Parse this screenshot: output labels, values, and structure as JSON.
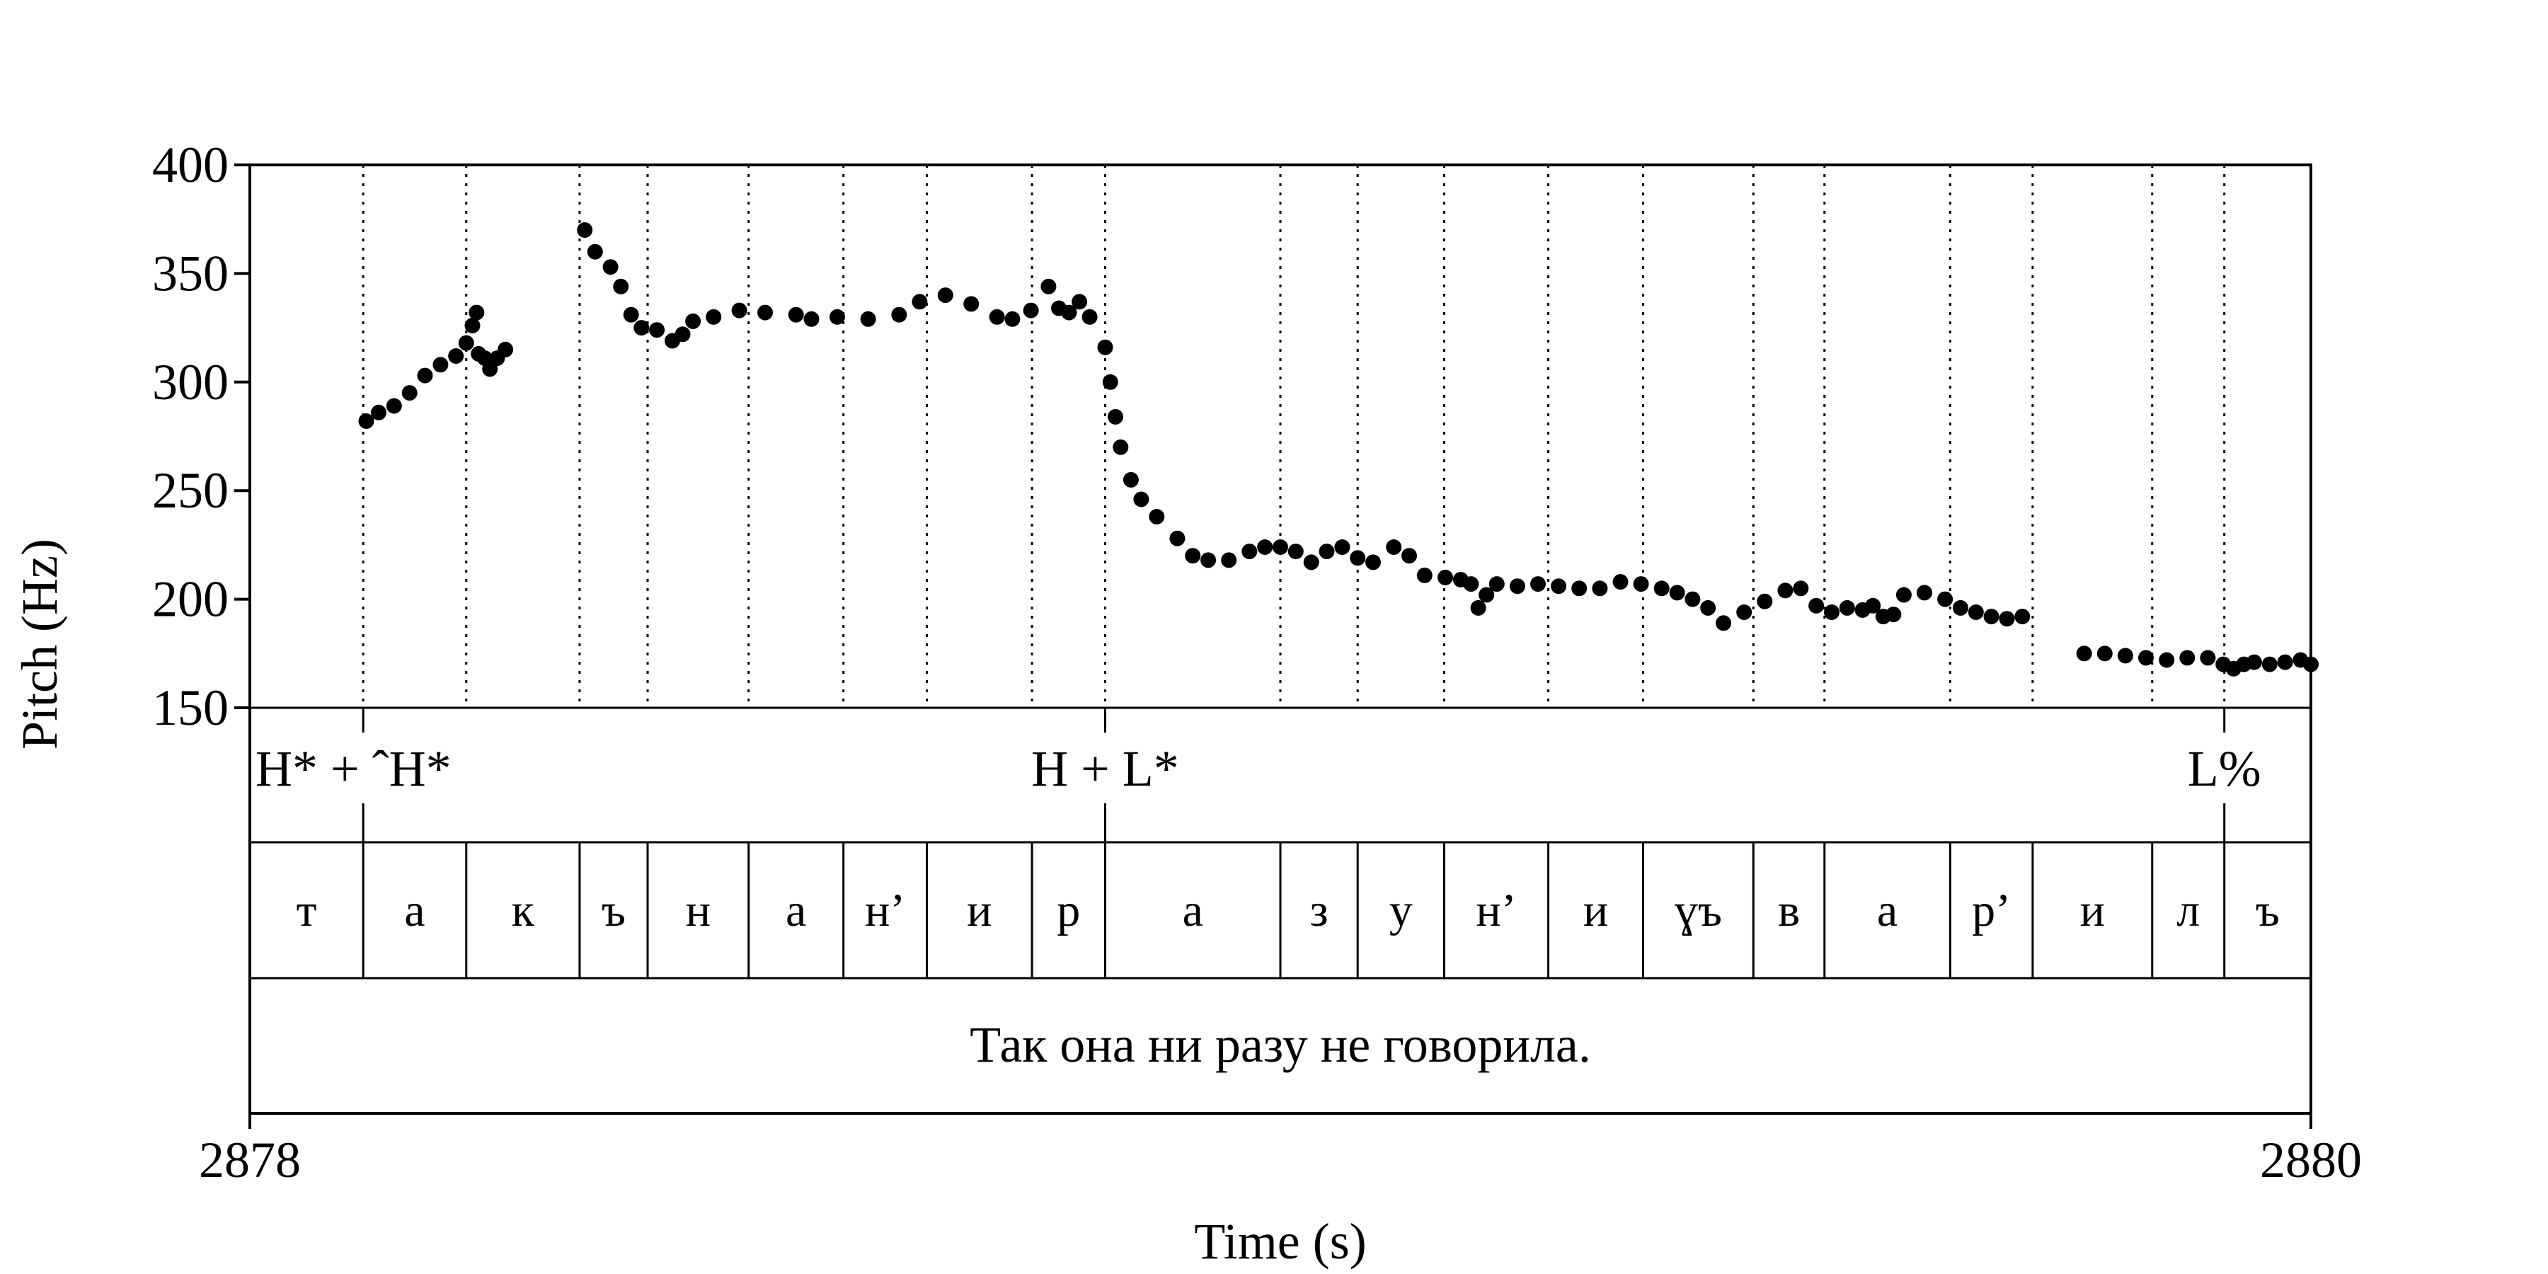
{
  "chart_data": {
    "type": "scatter",
    "xlabel": "Time (s)",
    "ylabel": "Pitch (Hz)",
    "xlim": [
      2878,
      2880
    ],
    "ylim": [
      150,
      400
    ],
    "x_ticks": [
      "2878",
      "2880"
    ],
    "y_ticks": [
      "150",
      "200",
      "250",
      "300",
      "350",
      "400"
    ],
    "grid": "dotted vertical lines at segment boundaries",
    "segment_boundaries": [
      2878.11,
      2878.21,
      2878.32,
      2878.386,
      2878.484,
      2878.576,
      2878.657,
      2878.759,
      2878.83,
      2879.0,
      2879.075,
      2879.159,
      2879.26,
      2879.352,
      2879.459,
      2879.528,
      2879.65,
      2879.73,
      2879.846,
      2879.916
    ],
    "tones": [
      {
        "label": "H* + ˆH*",
        "t": 2878.11
      },
      {
        "label": "H + L*",
        "t": 2878.83
      },
      {
        "label": "L%",
        "t": 2879.916
      }
    ],
    "segments": [
      {
        "label": "т",
        "start": 2878.0,
        "end": 2878.11
      },
      {
        "label": "а",
        "start": 2878.11,
        "end": 2878.21
      },
      {
        "label": "к",
        "start": 2878.21,
        "end": 2878.32
      },
      {
        "label": "ъ",
        "start": 2878.32,
        "end": 2878.386
      },
      {
        "label": "н",
        "start": 2878.386,
        "end": 2878.484
      },
      {
        "label": "а",
        "start": 2878.484,
        "end": 2878.576
      },
      {
        "label": "н’",
        "start": 2878.576,
        "end": 2878.657
      },
      {
        "label": "и",
        "start": 2878.657,
        "end": 2878.759
      },
      {
        "label": "р",
        "start": 2878.759,
        "end": 2878.83
      },
      {
        "label": "а",
        "start": 2878.83,
        "end": 2879.0
      },
      {
        "label": "з",
        "start": 2879.0,
        "end": 2879.075
      },
      {
        "label": "у",
        "start": 2879.075,
        "end": 2879.159
      },
      {
        "label": "н’",
        "start": 2879.159,
        "end": 2879.26
      },
      {
        "label": "и",
        "start": 2879.26,
        "end": 2879.352
      },
      {
        "label": "ɣъ",
        "start": 2879.352,
        "end": 2879.459
      },
      {
        "label": "в",
        "start": 2879.459,
        "end": 2879.528
      },
      {
        "label": "а",
        "start": 2879.528,
        "end": 2879.65
      },
      {
        "label": "р’",
        "start": 2879.65,
        "end": 2879.73
      },
      {
        "label": "и",
        "start": 2879.73,
        "end": 2879.846
      },
      {
        "label": "л",
        "start": 2879.846,
        "end": 2879.916
      },
      {
        "label": "ъ",
        "start": 2879.916,
        "end": 2880.0
      }
    ],
    "sentence": "Так она ни разу не говорила.",
    "series": [
      {
        "points": [
          [
            2878.113,
            282
          ],
          [
            2878.125,
            286
          ],
          [
            2878.14,
            289
          ],
          [
            2878.155,
            295
          ],
          [
            2878.17,
            303
          ],
          [
            2878.185,
            308
          ],
          [
            2878.2,
            312
          ],
          [
            2878.21,
            318
          ],
          [
            2878.216,
            326
          ],
          [
            2878.22,
            332
          ],
          [
            2878.222,
            313
          ],
          [
            2878.228,
            311
          ],
          [
            2878.233,
            306
          ],
          [
            2878.24,
            311
          ],
          [
            2878.248,
            315
          ],
          [
            2878.325,
            370
          ],
          [
            2878.335,
            360
          ],
          [
            2878.35,
            353
          ],
          [
            2878.36,
            344
          ],
          [
            2878.37,
            331
          ],
          [
            2878.38,
            325
          ],
          [
            2878.395,
            324
          ],
          [
            2878.41,
            319
          ],
          [
            2878.42,
            322
          ],
          [
            2878.43,
            328
          ],
          [
            2878.45,
            330
          ],
          [
            2878.475,
            333
          ],
          [
            2878.5,
            332
          ],
          [
            2878.53,
            331
          ],
          [
            2878.545,
            329
          ],
          [
            2878.57,
            330
          ],
          [
            2878.6,
            329
          ],
          [
            2878.63,
            331
          ],
          [
            2878.65,
            337
          ],
          [
            2878.675,
            340
          ],
          [
            2878.7,
            336
          ],
          [
            2878.725,
            330
          ],
          [
            2878.74,
            329
          ],
          [
            2878.758,
            333
          ],
          [
            2878.775,
            344
          ],
          [
            2878.785,
            334
          ],
          [
            2878.795,
            332
          ],
          [
            2878.805,
            337
          ],
          [
            2878.815,
            330
          ],
          [
            2878.83,
            316
          ],
          [
            2878.835,
            300
          ],
          [
            2878.84,
            284
          ],
          [
            2878.845,
            270
          ],
          [
            2878.855,
            255
          ],
          [
            2878.865,
            246
          ],
          [
            2878.88,
            238
          ],
          [
            2878.9,
            228
          ],
          [
            2878.915,
            220
          ],
          [
            2878.93,
            218
          ],
          [
            2878.95,
            218
          ],
          [
            2878.97,
            222
          ],
          [
            2878.985,
            224
          ],
          [
            2879.0,
            224
          ],
          [
            2879.015,
            222
          ],
          [
            2879.03,
            217
          ],
          [
            2879.045,
            222
          ],
          [
            2879.06,
            224
          ],
          [
            2879.075,
            219
          ],
          [
            2879.09,
            217
          ],
          [
            2879.11,
            224
          ],
          [
            2879.125,
            220
          ],
          [
            2879.14,
            211
          ],
          [
            2879.16,
            210
          ],
          [
            2879.175,
            209
          ],
          [
            2879.185,
            207
          ],
          [
            2879.192,
            196
          ],
          [
            2879.2,
            202
          ],
          [
            2879.21,
            207
          ],
          [
            2879.23,
            206
          ],
          [
            2879.25,
            207
          ],
          [
            2879.27,
            206
          ],
          [
            2879.29,
            205
          ],
          [
            2879.31,
            205
          ],
          [
            2879.33,
            208
          ],
          [
            2879.35,
            207
          ],
          [
            2879.37,
            205
          ],
          [
            2879.385,
            203
          ],
          [
            2879.4,
            200
          ],
          [
            2879.415,
            196
          ],
          [
            2879.43,
            189
          ],
          [
            2879.45,
            194
          ],
          [
            2879.47,
            199
          ],
          [
            2879.49,
            204
          ],
          [
            2879.505,
            205
          ],
          [
            2879.52,
            197
          ],
          [
            2879.535,
            194
          ],
          [
            2879.55,
            196
          ],
          [
            2879.565,
            195
          ],
          [
            2879.575,
            197
          ],
          [
            2879.585,
            192
          ],
          [
            2879.595,
            193
          ],
          [
            2879.605,
            202
          ],
          [
            2879.625,
            203
          ],
          [
            2879.645,
            200
          ],
          [
            2879.66,
            196
          ],
          [
            2879.675,
            194
          ],
          [
            2879.69,
            192
          ],
          [
            2879.705,
            191
          ],
          [
            2879.72,
            192
          ],
          [
            2879.78,
            175
          ],
          [
            2879.8,
            175
          ],
          [
            2879.82,
            174
          ],
          [
            2879.84,
            173
          ],
          [
            2879.86,
            172
          ],
          [
            2879.88,
            173
          ],
          [
            2879.9,
            173
          ],
          [
            2879.915,
            170
          ],
          [
            2879.925,
            168
          ],
          [
            2879.935,
            170
          ],
          [
            2879.945,
            171
          ],
          [
            2879.96,
            170
          ],
          [
            2879.975,
            171
          ],
          [
            2879.99,
            172
          ],
          [
            2880.0,
            170
          ]
        ]
      }
    ]
  }
}
